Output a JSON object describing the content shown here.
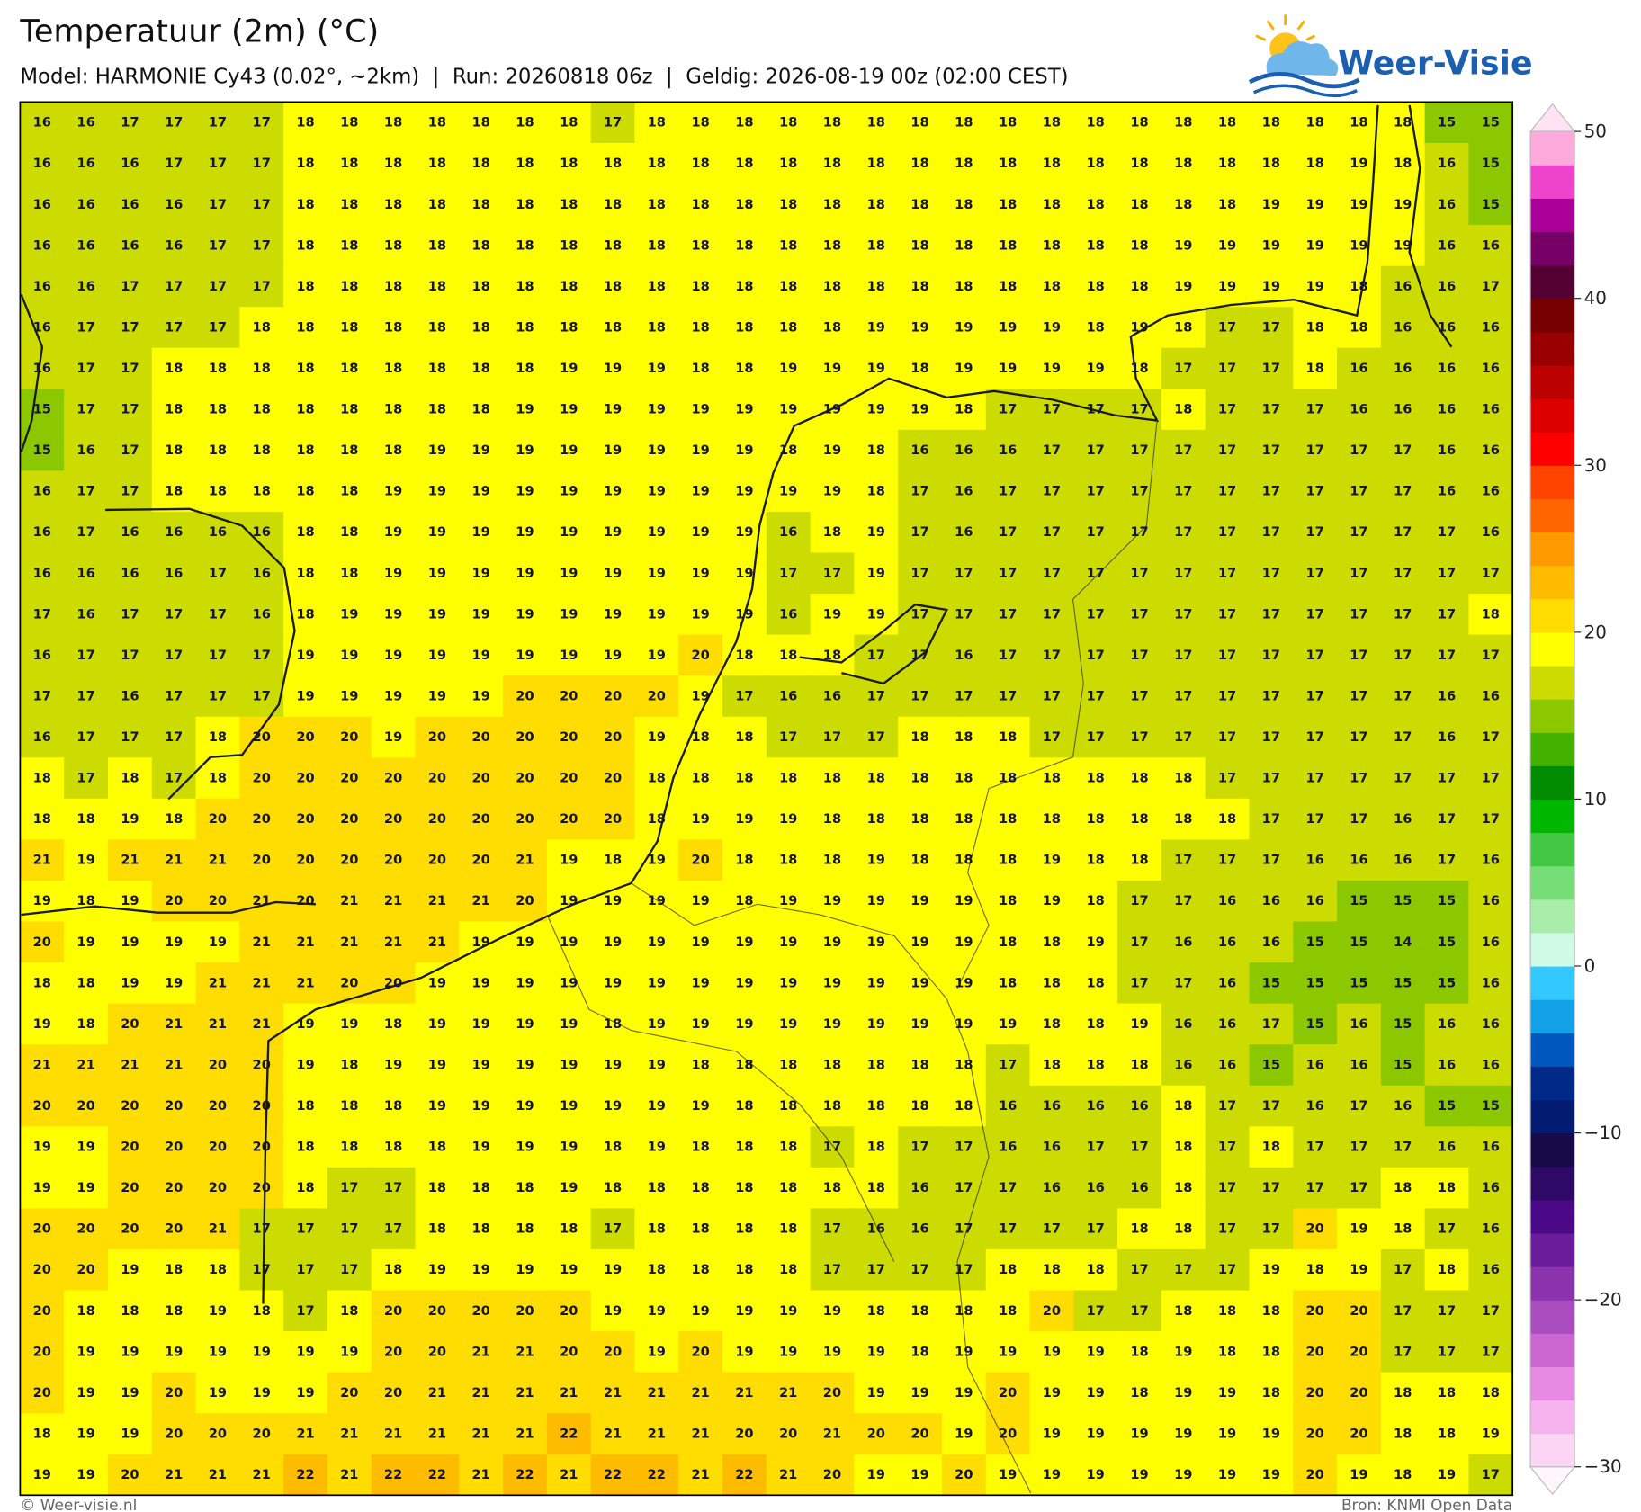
{
  "header": {
    "title": "Temperatuur (2m) (°C)",
    "subtitle": "Model: HARMONIE Cy43 (0.02°, ~2km)  |  Run: 20260818 06z  |  Geldig: 2026-08-19 00z (02:00 CEST)"
  },
  "logo": {
    "text": "Weer-Visie"
  },
  "map": {
    "values": [
      [
        16,
        16,
        17,
        17,
        17,
        17,
        18,
        18,
        18,
        18,
        18,
        18,
        18,
        17,
        18,
        18,
        18,
        18,
        18,
        18,
        18,
        18,
        18,
        18,
        18,
        18,
        18,
        18,
        18,
        18,
        18,
        18,
        15,
        15
      ],
      [
        16,
        16,
        16,
        17,
        17,
        17,
        18,
        18,
        18,
        18,
        18,
        18,
        18,
        18,
        18,
        18,
        18,
        18,
        18,
        18,
        18,
        18,
        18,
        18,
        18,
        18,
        18,
        18,
        18,
        18,
        19,
        18,
        16,
        15
      ],
      [
        16,
        16,
        16,
        16,
        17,
        17,
        18,
        18,
        18,
        18,
        18,
        18,
        18,
        18,
        18,
        18,
        18,
        18,
        18,
        18,
        18,
        18,
        18,
        18,
        18,
        18,
        18,
        18,
        19,
        19,
        19,
        19,
        16,
        15
      ],
      [
        16,
        16,
        16,
        16,
        17,
        17,
        18,
        18,
        18,
        18,
        18,
        18,
        18,
        18,
        18,
        18,
        18,
        18,
        18,
        18,
        18,
        18,
        18,
        18,
        18,
        18,
        19,
        19,
        19,
        19,
        19,
        19,
        16,
        16
      ],
      [
        16,
        16,
        17,
        17,
        17,
        17,
        18,
        18,
        18,
        18,
        18,
        18,
        18,
        18,
        18,
        18,
        18,
        18,
        18,
        18,
        18,
        18,
        18,
        18,
        18,
        18,
        19,
        19,
        19,
        19,
        18,
        16,
        16,
        17
      ],
      [
        16,
        17,
        17,
        17,
        17,
        18,
        18,
        18,
        18,
        18,
        18,
        18,
        18,
        18,
        18,
        18,
        18,
        18,
        18,
        19,
        19,
        19,
        19,
        19,
        18,
        19,
        18,
        17,
        17,
        18,
        18,
        16,
        16,
        16
      ],
      [
        16,
        17,
        17,
        18,
        18,
        18,
        18,
        18,
        18,
        18,
        18,
        18,
        19,
        19,
        19,
        18,
        18,
        19,
        19,
        19,
        18,
        19,
        19,
        19,
        19,
        18,
        17,
        17,
        17,
        18,
        16,
        16,
        16,
        16
      ],
      [
        15,
        17,
        17,
        18,
        18,
        18,
        18,
        18,
        18,
        18,
        18,
        19,
        19,
        19,
        19,
        19,
        19,
        19,
        19,
        19,
        19,
        18,
        17,
        17,
        17,
        17,
        18,
        17,
        17,
        17,
        16,
        16,
        16,
        16
      ],
      [
        15,
        16,
        17,
        18,
        18,
        18,
        18,
        18,
        18,
        19,
        19,
        19,
        19,
        19,
        19,
        19,
        19,
        18,
        19,
        18,
        16,
        16,
        16,
        17,
        17,
        17,
        17,
        17,
        17,
        17,
        17,
        17,
        16,
        16
      ],
      [
        16,
        17,
        17,
        18,
        18,
        18,
        18,
        18,
        19,
        19,
        19,
        19,
        19,
        19,
        19,
        19,
        19,
        19,
        19,
        18,
        17,
        16,
        17,
        17,
        17,
        17,
        17,
        17,
        17,
        17,
        17,
        17,
        16,
        16
      ],
      [
        16,
        17,
        16,
        16,
        16,
        16,
        18,
        18,
        19,
        19,
        19,
        19,
        19,
        19,
        19,
        19,
        19,
        16,
        18,
        19,
        17,
        16,
        17,
        17,
        17,
        17,
        17,
        17,
        17,
        17,
        17,
        17,
        17,
        16
      ],
      [
        16,
        16,
        16,
        16,
        17,
        16,
        18,
        18,
        19,
        19,
        19,
        19,
        19,
        19,
        19,
        19,
        19,
        17,
        17,
        19,
        17,
        17,
        17,
        17,
        17,
        17,
        17,
        17,
        17,
        17,
        17,
        17,
        17,
        17
      ],
      [
        17,
        16,
        17,
        17,
        17,
        16,
        18,
        19,
        19,
        19,
        19,
        19,
        19,
        19,
        19,
        19,
        19,
        16,
        19,
        19,
        17,
        17,
        17,
        17,
        17,
        17,
        17,
        17,
        17,
        17,
        17,
        17,
        17,
        18
      ],
      [
        16,
        17,
        17,
        17,
        17,
        17,
        19,
        19,
        19,
        19,
        19,
        19,
        19,
        19,
        19,
        20,
        18,
        18,
        18,
        17,
        17,
        16,
        17,
        17,
        17,
        17,
        17,
        17,
        17,
        17,
        17,
        17,
        17,
        17
      ],
      [
        17,
        17,
        16,
        17,
        17,
        17,
        19,
        19,
        19,
        19,
        19,
        20,
        20,
        20,
        20,
        19,
        17,
        16,
        16,
        17,
        17,
        17,
        17,
        17,
        17,
        17,
        17,
        17,
        17,
        17,
        17,
        17,
        16,
        16
      ],
      [
        16,
        17,
        17,
        17,
        18,
        20,
        20,
        20,
        19,
        20,
        20,
        20,
        20,
        20,
        19,
        18,
        18,
        17,
        17,
        17,
        18,
        18,
        18,
        17,
        17,
        17,
        17,
        17,
        17,
        17,
        17,
        17,
        16,
        17
      ],
      [
        18,
        17,
        18,
        17,
        18,
        20,
        20,
        20,
        20,
        20,
        20,
        20,
        20,
        20,
        18,
        18,
        18,
        18,
        18,
        18,
        18,
        18,
        18,
        18,
        18,
        18,
        18,
        17,
        17,
        17,
        17,
        17,
        17,
        17
      ],
      [
        18,
        18,
        19,
        18,
        20,
        20,
        20,
        20,
        20,
        20,
        20,
        20,
        20,
        20,
        18,
        19,
        19,
        19,
        18,
        18,
        18,
        18,
        18,
        18,
        18,
        18,
        18,
        18,
        17,
        17,
        17,
        16,
        17,
        17
      ],
      [
        21,
        19,
        21,
        21,
        21,
        20,
        20,
        20,
        20,
        20,
        20,
        21,
        19,
        18,
        19,
        20,
        18,
        18,
        18,
        19,
        18,
        18,
        18,
        19,
        18,
        18,
        17,
        17,
        17,
        16,
        16,
        16,
        17,
        16
      ],
      [
        19,
        18,
        19,
        20,
        20,
        21,
        20,
        21,
        21,
        21,
        21,
        20,
        19,
        19,
        19,
        19,
        18,
        19,
        19,
        19,
        19,
        19,
        18,
        19,
        18,
        17,
        17,
        16,
        16,
        16,
        15,
        15,
        15,
        16
      ],
      [
        20,
        19,
        19,
        19,
        19,
        21,
        21,
        21,
        21,
        21,
        19,
        19,
        19,
        19,
        19,
        19,
        19,
        19,
        19,
        19,
        19,
        19,
        18,
        18,
        19,
        17,
        16,
        16,
        16,
        15,
        15,
        14,
        15,
        16
      ],
      [
        18,
        18,
        19,
        19,
        21,
        21,
        21,
        20,
        20,
        19,
        19,
        19,
        19,
        19,
        19,
        19,
        19,
        19,
        19,
        19,
        19,
        19,
        18,
        18,
        18,
        17,
        17,
        16,
        15,
        15,
        15,
        15,
        15,
        16
      ],
      [
        19,
        18,
        20,
        21,
        21,
        21,
        19,
        19,
        18,
        19,
        19,
        19,
        19,
        18,
        19,
        19,
        19,
        19,
        19,
        19,
        19,
        19,
        19,
        18,
        18,
        19,
        16,
        16,
        17,
        15,
        16,
        15,
        16,
        16
      ],
      [
        21,
        21,
        21,
        21,
        20,
        20,
        19,
        18,
        19,
        19,
        19,
        19,
        19,
        19,
        19,
        18,
        18,
        18,
        18,
        18,
        18,
        18,
        17,
        18,
        18,
        18,
        16,
        16,
        15,
        16,
        16,
        15,
        16,
        16
      ],
      [
        20,
        20,
        20,
        20,
        20,
        20,
        18,
        18,
        18,
        19,
        19,
        19,
        19,
        19,
        19,
        19,
        18,
        18,
        18,
        18,
        18,
        18,
        16,
        16,
        16,
        16,
        18,
        17,
        17,
        16,
        17,
        16,
        15,
        15
      ],
      [
        19,
        19,
        20,
        20,
        20,
        20,
        18,
        18,
        18,
        18,
        19,
        19,
        19,
        18,
        19,
        18,
        18,
        18,
        17,
        18,
        17,
        17,
        16,
        16,
        17,
        17,
        18,
        17,
        18,
        17,
        17,
        17,
        16,
        16
      ],
      [
        19,
        19,
        20,
        20,
        20,
        20,
        18,
        17,
        17,
        18,
        18,
        18,
        19,
        18,
        18,
        18,
        18,
        18,
        18,
        18,
        16,
        17,
        17,
        16,
        16,
        16,
        18,
        17,
        17,
        17,
        17,
        18,
        18,
        16
      ],
      [
        20,
        20,
        20,
        20,
        21,
        17,
        17,
        17,
        17,
        18,
        18,
        18,
        18,
        17,
        18,
        18,
        18,
        18,
        17,
        16,
        16,
        17,
        17,
        17,
        17,
        18,
        18,
        17,
        17,
        20,
        19,
        18,
        17,
        16
      ],
      [
        20,
        20,
        19,
        18,
        18,
        17,
        17,
        17,
        18,
        19,
        19,
        19,
        19,
        19,
        18,
        18,
        18,
        18,
        17,
        17,
        17,
        17,
        18,
        18,
        18,
        17,
        17,
        17,
        19,
        18,
        19,
        17,
        18,
        16
      ],
      [
        20,
        18,
        18,
        18,
        19,
        18,
        17,
        18,
        20,
        20,
        20,
        20,
        20,
        19,
        19,
        19,
        19,
        19,
        19,
        18,
        18,
        18,
        18,
        20,
        17,
        17,
        18,
        18,
        18,
        20,
        20,
        17,
        17,
        17
      ],
      [
        20,
        19,
        19,
        19,
        19,
        19,
        19,
        19,
        20,
        20,
        21,
        21,
        20,
        20,
        19,
        20,
        19,
        19,
        19,
        19,
        18,
        19,
        19,
        19,
        19,
        18,
        19,
        18,
        18,
        20,
        20,
        17,
        17,
        17
      ],
      [
        20,
        19,
        19,
        20,
        19,
        19,
        19,
        20,
        20,
        21,
        21,
        21,
        21,
        21,
        21,
        21,
        21,
        21,
        20,
        19,
        19,
        19,
        20,
        19,
        19,
        18,
        19,
        19,
        18,
        20,
        20,
        18,
        18,
        18
      ],
      [
        18,
        19,
        19,
        20,
        20,
        20,
        21,
        21,
        21,
        21,
        21,
        21,
        22,
        21,
        21,
        21,
        20,
        20,
        21,
        20,
        20,
        19,
        20,
        19,
        19,
        19,
        19,
        19,
        19,
        20,
        20,
        18,
        18,
        19
      ],
      [
        19,
        19,
        20,
        21,
        21,
        21,
        22,
        21,
        22,
        22,
        21,
        22,
        21,
        22,
        22,
        21,
        22,
        21,
        20,
        19,
        19,
        20,
        19,
        19,
        19,
        19,
        19,
        19,
        19,
        20,
        19,
        18,
        19,
        17
      ]
    ],
    "colorbar": {
      "lim": [
        -30,
        50
      ],
      "ticks": [
        {
          "value": -30,
          "label": "−30"
        },
        {
          "value": -20,
          "label": "−20"
        },
        {
          "value": -10,
          "label": "−10"
        },
        0,
        10,
        20,
        30,
        40,
        50
      ],
      "colors": [
        "#fdd5f5",
        "#f7b3ee",
        "#e68ae2",
        "#cc66d0",
        "#aa4dbf",
        "#8a33ad",
        "#6a1c9a",
        "#4a0a88",
        "#2e0a66",
        "#170a48",
        "#031c72",
        "#002a88",
        "#0058be",
        "#12a0e6",
        "#33c8ff",
        "#d0fbe6",
        "#a8eeaa",
        "#77dd77",
        "#44c844",
        "#00b800",
        "#008c00",
        "#44b000",
        "#8cc800",
        "#cddc00",
        "#ffff00",
        "#ffdd00",
        "#ffbb00",
        "#ff9900",
        "#ff6600",
        "#ff4400",
        "#ff0000",
        "#dd0000",
        "#bb0000",
        "#990000",
        "#770000",
        "#550033",
        "#770066",
        "#aa0099",
        "#ee44cc",
        "#ffaadd"
      ]
    }
  },
  "footer": {
    "left": "© Weer-visie.nl",
    "right": "Bron: KNMI Open Data"
  }
}
